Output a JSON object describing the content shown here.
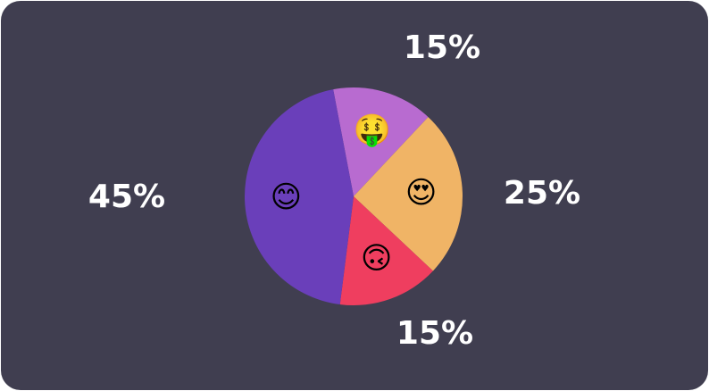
{
  "chart_data": {
    "type": "pie",
    "categories": [
      "🤑",
      "😍",
      "🙃",
      "😊"
    ],
    "values": [
      15,
      25,
      15,
      45
    ],
    "value_labels": [
      "15%",
      "25%",
      "15%",
      "45%"
    ],
    "colors": [
      "#b86bd0",
      "#f0b466",
      "#ef3e5f",
      "#6a3fba"
    ]
  }
}
